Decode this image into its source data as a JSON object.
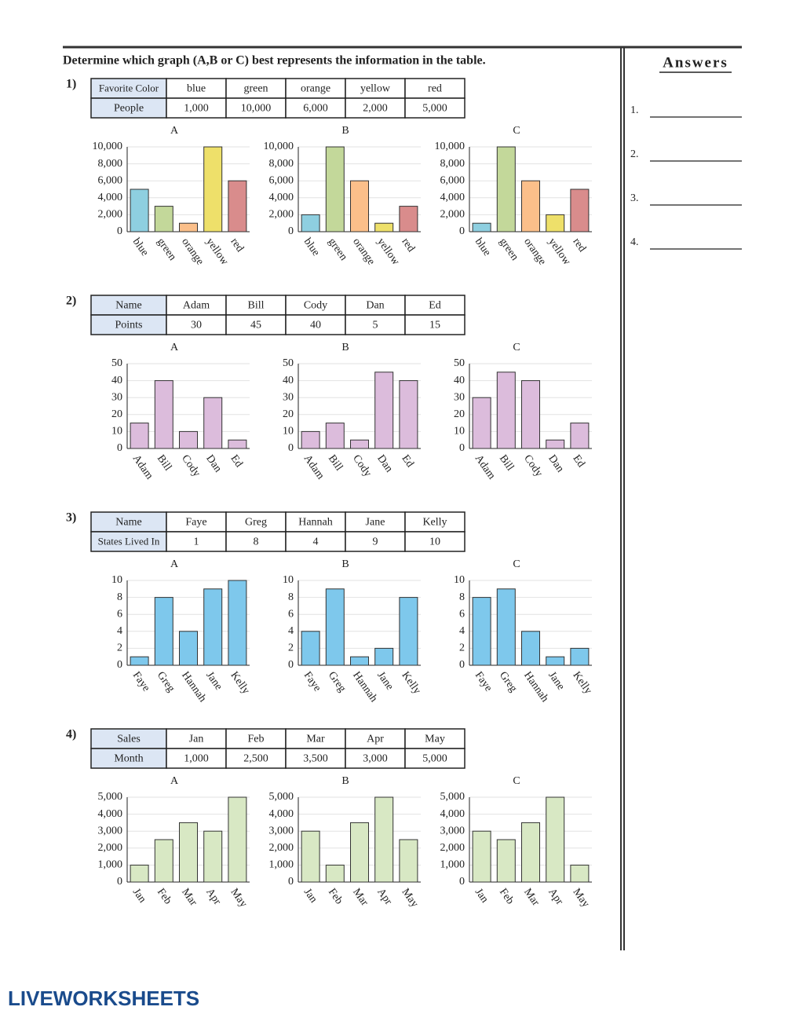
{
  "instruction": "Determine which graph (A,B or C) best represents the information in the table.",
  "answers": {
    "title": "Answers",
    "items": [
      "1.",
      "2.",
      "3.",
      "4."
    ]
  },
  "footer": "LIVEWORKSHEETS",
  "questions": [
    {
      "number": "1)",
      "table": {
        "rows": [
          [
            "Favorite Color",
            "blue",
            "green",
            "orange",
            "yellow",
            "red"
          ],
          [
            "People",
            "1,000",
            "10,000",
            "6,000",
            "2,000",
            "5,000"
          ]
        ]
      },
      "categories": [
        "blue",
        "green",
        "orange",
        "yellow",
        "red"
      ],
      "colors": [
        "#8ecfe0",
        "#c3d89a",
        "#fbbf8a",
        "#eee06a",
        "#d98c8c"
      ],
      "ylim": [
        0,
        10000
      ],
      "yticks": [
        0,
        {
          "value": 2000,
          "label": "2,000"
        },
        {
          "value": 4000,
          "label": "4,000"
        },
        {
          "value": 6000,
          "label": "6,000"
        },
        {
          "value": 8000,
          "label": "8,000"
        },
        {
          "value": 10000,
          "label": "10,000"
        }
      ],
      "grid": true,
      "charts": [
        {
          "label": "A",
          "values": [
            5000,
            3000,
            1000,
            10000,
            6000
          ]
        },
        {
          "label": "B",
          "values": [
            2000,
            10000,
            6000,
            1000,
            3000
          ]
        },
        {
          "label": "C",
          "values": [
            1000,
            10000,
            6000,
            2000,
            5000
          ]
        }
      ]
    },
    {
      "number": "2)",
      "table": {
        "rows": [
          [
            "Name",
            "Adam",
            "Bill",
            "Cody",
            "Dan",
            "Ed"
          ],
          [
            "Points",
            "30",
            "45",
            "40",
            "5",
            "15"
          ]
        ]
      },
      "categories": [
        "Adam",
        "Bill",
        "Cody",
        "Dan",
        "Ed"
      ],
      "colors": [
        "#dcbcdc",
        "#dcbcdc",
        "#dcbcdc",
        "#dcbcdc",
        "#dcbcdc"
      ],
      "ylim": [
        0,
        50
      ],
      "yticks": [
        0,
        10,
        20,
        30,
        40,
        50
      ],
      "grid": true,
      "charts": [
        {
          "label": "A",
          "values": [
            15,
            40,
            10,
            30,
            5
          ]
        },
        {
          "label": "B",
          "values": [
            10,
            15,
            5,
            45,
            40
          ]
        },
        {
          "label": "C",
          "values": [
            30,
            45,
            40,
            5,
            15
          ]
        }
      ]
    },
    {
      "number": "3)",
      "table": {
        "rows": [
          [
            "Name",
            "Faye",
            "Greg",
            "Hannah",
            "Jane",
            "Kelly"
          ],
          [
            "States Lived In",
            "1",
            "8",
            "4",
            "9",
            "10"
          ]
        ]
      },
      "categories": [
        "Faye",
        "Greg",
        "Hannah",
        "Jane",
        "Kelly"
      ],
      "colors": [
        "#7ec8ec",
        "#7ec8ec",
        "#7ec8ec",
        "#7ec8ec",
        "#7ec8ec"
      ],
      "ylim": [
        0,
        10
      ],
      "yticks": [
        0,
        2,
        4,
        6,
        8,
        10
      ],
      "grid": true,
      "charts": [
        {
          "label": "A",
          "values": [
            1,
            8,
            4,
            9,
            10
          ]
        },
        {
          "label": "B",
          "values": [
            4,
            9,
            1,
            2,
            8
          ]
        },
        {
          "label": "C",
          "values": [
            8,
            9,
            4,
            1,
            2
          ]
        }
      ]
    },
    {
      "number": "4)",
      "table": {
        "rows": [
          [
            "Sales",
            "Jan",
            "Feb",
            "Mar",
            "Apr",
            "May"
          ],
          [
            "Month",
            "1,000",
            "2,500",
            "3,500",
            "3,000",
            "5,000"
          ]
        ]
      },
      "categories": [
        "Jan",
        "Feb",
        "Mar",
        "Apr",
        "May"
      ],
      "colors": [
        "#d8e8c4",
        "#d8e8c4",
        "#d8e8c4",
        "#d8e8c4",
        "#d8e8c4"
      ],
      "ylim": [
        0,
        5000
      ],
      "yticks": [
        0,
        {
          "value": 1000,
          "label": "1,000"
        },
        {
          "value": 2000,
          "label": "2,000"
        },
        {
          "value": 3000,
          "label": "3,000"
        },
        {
          "value": 4000,
          "label": "4,000"
        },
        {
          "value": 5000,
          "label": "5,000"
        }
      ],
      "grid": true,
      "charts": [
        {
          "label": "A",
          "values": [
            1000,
            2500,
            3500,
            3000,
            5000
          ]
        },
        {
          "label": "B",
          "values": [
            3000,
            1000,
            3500,
            5000,
            2500
          ]
        },
        {
          "label": "C",
          "values": [
            3000,
            2500,
            3500,
            5000,
            1000
          ]
        }
      ]
    }
  ]
}
